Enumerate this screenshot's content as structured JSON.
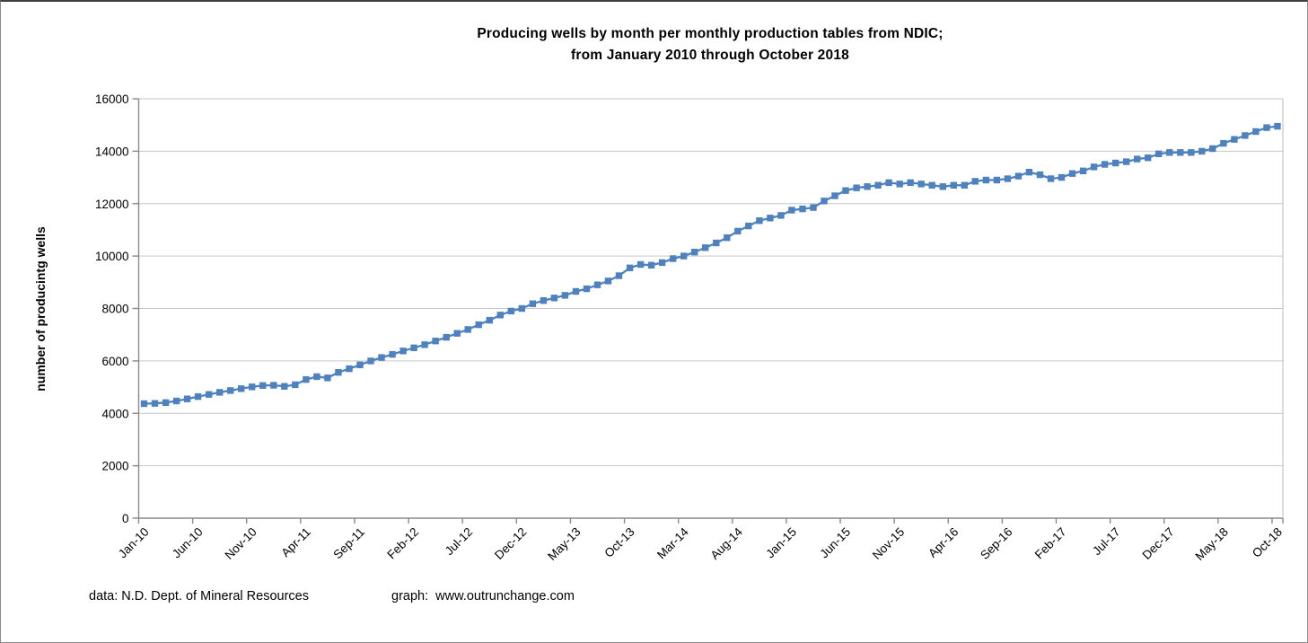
{
  "page": {
    "title_line1": "Producing wells by month per monthly production tables from NDIC;",
    "title_line2": "from January 2010 through October 2018",
    "footer_data_source": "data: N.D. Dept. of Mineral Resources",
    "footer_graph_credit": "graph:  www.outrunchange.com"
  },
  "chart_data": {
    "type": "line",
    "title": "Producing wells by month per monthly production tables from NDIC; from January 2010 through October 2018",
    "xlabel": "",
    "ylabel": "number of producintg wells",
    "ylim": [
      0,
      16000
    ],
    "y_tick_step": 2000,
    "y_tick_labels": [
      "0",
      "2000",
      "4000",
      "6000",
      "8000",
      "10000",
      "12000",
      "14000",
      "16000"
    ],
    "x_start": "Jan-10",
    "x_end": "Oct-18",
    "x_frequency": "monthly",
    "x_tick_interval": 5,
    "x_tick_labels": [
      "Jan-10",
      "Jun-10",
      "Nov-10",
      "Apr-11",
      "Sep-11",
      "Feb-12",
      "Jul-12",
      "Dec-12",
      "May-13",
      "Oct-13",
      "Mar-14",
      "Aug-14",
      "Jan-15",
      "Jun-15",
      "Nov-15",
      "Apr-16",
      "Sep-16",
      "Feb-17",
      "Jul-17",
      "Dec-17",
      "May-18",
      "Oct-18"
    ],
    "grid": "horizontal",
    "legend": "none",
    "line_color": "#4F81BD",
    "grid_color": "#C6C6C6",
    "axis_color": "#898989",
    "marker": "square",
    "series": [
      {
        "name": "producing wells",
        "values": [
          4370,
          4380,
          4410,
          4470,
          4550,
          4640,
          4720,
          4800,
          4870,
          4940,
          5010,
          5060,
          5070,
          5030,
          5090,
          5290,
          5400,
          5350,
          5560,
          5700,
          5850,
          6000,
          6130,
          6250,
          6380,
          6500,
          6620,
          6760,
          6900,
          7050,
          7200,
          7380,
          7550,
          7750,
          7900,
          8000,
          8180,
          8300,
          8400,
          8500,
          8650,
          8750,
          8900,
          9050,
          9250,
          9550,
          9680,
          9650,
          9750,
          9900,
          10000,
          10150,
          10320,
          10500,
          10700,
          10950,
          11150,
          11350,
          11450,
          11550,
          11750,
          11800,
          11850,
          12100,
          12300,
          12500,
          12600,
          12650,
          12700,
          12800,
          12750,
          12800,
          12750,
          12700,
          12650,
          12700,
          12700,
          12850,
          12900,
          12900,
          12950,
          13050,
          13200,
          13100,
          12950,
          13000,
          13150,
          13250,
          13400,
          13500,
          13550,
          13600,
          13700,
          13750,
          13900,
          13950,
          13950,
          13950,
          14000,
          14100,
          14300,
          14450,
          14600,
          14750,
          14900,
          14950
        ]
      }
    ]
  }
}
